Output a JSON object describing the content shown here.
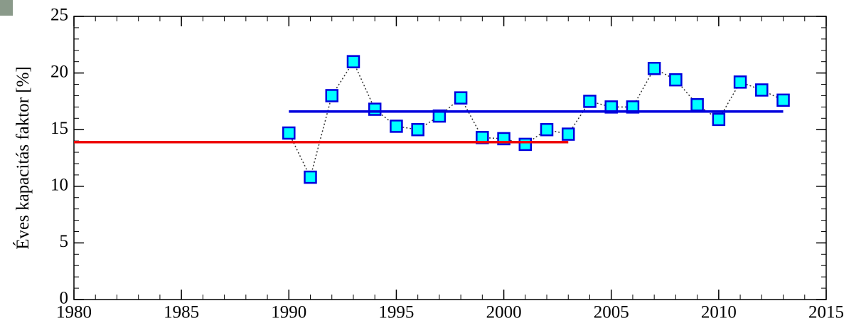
{
  "chart_data": {
    "type": "line",
    "ylabel": "Éves kapacitás faktor  [%]",
    "xlim": [
      1980,
      2015
    ],
    "ylim": [
      0,
      25
    ],
    "xticks": [
      1980,
      1985,
      1990,
      1995,
      2000,
      2005,
      2010,
      2015
    ],
    "yticks": [
      0,
      5,
      10,
      15,
      20,
      25
    ],
    "minor_ticks": {
      "x": 1,
      "y": 1
    },
    "series": [
      {
        "color": "#0000dd",
        "marker": "square",
        "marker_fill": "#00ffff",
        "linestyle": "dotted",
        "line_color": "#333333",
        "x": [
          1990,
          1991,
          1992,
          1993,
          1994,
          1995,
          1996,
          1997,
          1998,
          1999,
          2000,
          2001,
          2002,
          2003,
          2004,
          2005,
          2006,
          2007,
          2008,
          2009,
          2010,
          2011,
          2012,
          2013
        ],
        "values": [
          14.7,
          10.8,
          18.0,
          21.0,
          16.8,
          15.3,
          15.0,
          16.2,
          17.8,
          14.3,
          14.2,
          13.7,
          15.0,
          14.6,
          17.5,
          17.0,
          17.0,
          20.4,
          19.4,
          17.2,
          15.9,
          19.2,
          18.5,
          17.6
        ]
      },
      {
        "color": "#0000dd",
        "linestyle": "solid",
        "x": [
          1990,
          2013
        ],
        "values": [
          16.6,
          16.6
        ]
      },
      {
        "color": "#ee0000",
        "linestyle": "solid",
        "x": [
          1980,
          2003
        ],
        "values": [
          13.9,
          13.9
        ]
      }
    ]
  }
}
